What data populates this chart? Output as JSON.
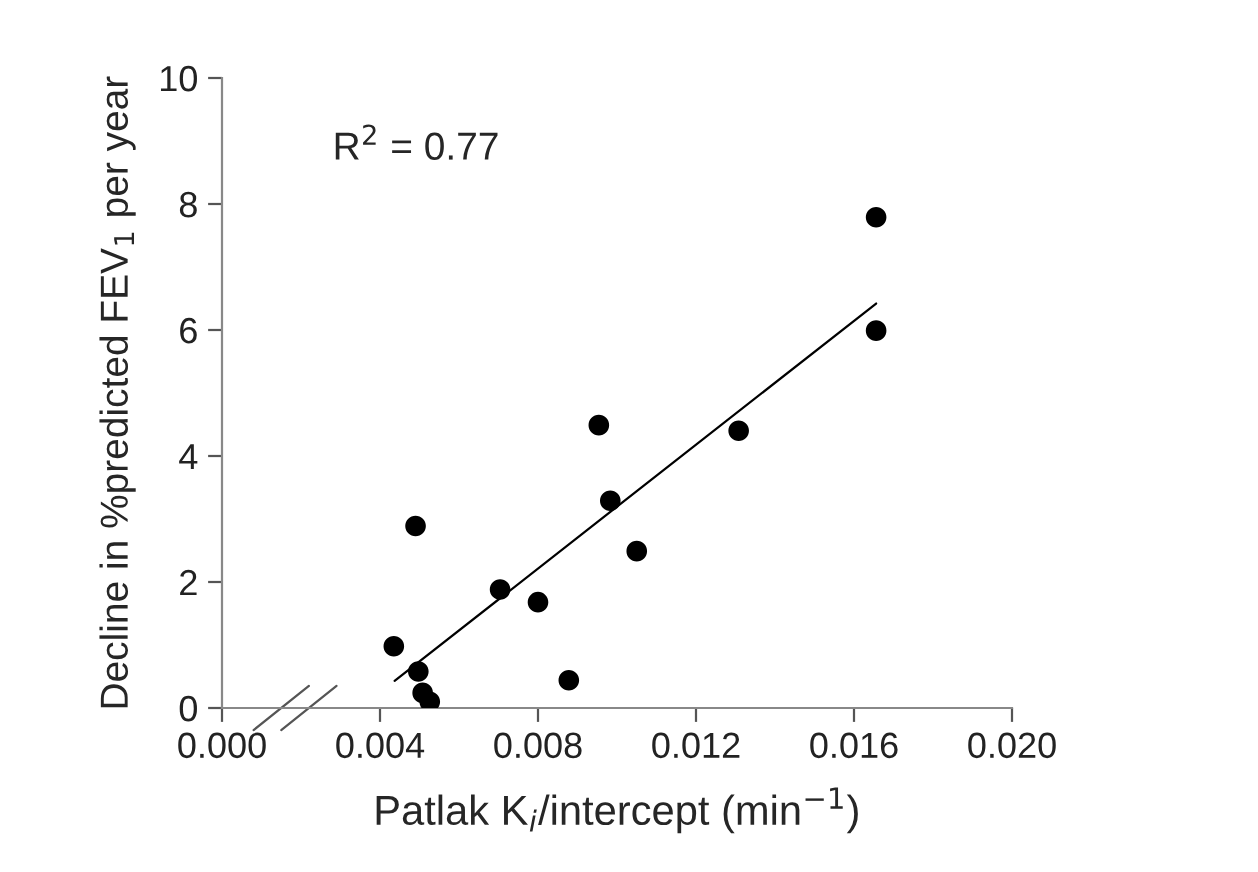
{
  "chart_data": {
    "type": "scatter",
    "xlabel": "Patlak K$_{i}$/intercept (min$^{−1}$)",
    "ylabel": "Decline in %predicted FEV$_{1}$ per year",
    "annotations": [
      "R$^{2}$ = 0.77"
    ],
    "series": [
      {
        "color": "#000000",
        "marker": "circle",
        "x": [
          0.00435,
          0.0049,
          0.00497,
          0.00508,
          0.00526,
          0.00704,
          0.008,
          0.00878,
          0.00954,
          0.00983,
          0.0105,
          0.01308,
          0.01656,
          0.01656
        ],
        "values": [
          0.98,
          2.89,
          0.58,
          0.24,
          0.1,
          1.88,
          1.68,
          0.44,
          4.49,
          3.29,
          2.49,
          4.4,
          7.79,
          5.99
        ]
      },
      {
        "type": "line",
        "color": "#000000",
        "x": [
          0.00437,
          0.01656
        ],
        "values": [
          0.43,
          6.42
        ]
      }
    ],
    "xlim": [
      0.0,
      0.02
    ],
    "xticks": [
      {
        "value": 0.0,
        "label": "0.000"
      },
      {
        "value": 0.004,
        "label": "0.004"
      },
      {
        "value": 0.008,
        "label": "0.008"
      },
      {
        "value": 0.012,
        "label": "0.012"
      },
      {
        "value": 0.016,
        "label": "0.016"
      },
      {
        "value": 0.02,
        "label": "0.020"
      }
    ],
    "ylim": [
      0,
      10
    ],
    "yticks": [
      0,
      2,
      4,
      6,
      8,
      10
    ],
    "grid": false,
    "legend": false
  }
}
